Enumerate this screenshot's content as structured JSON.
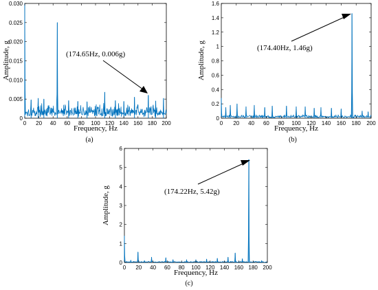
{
  "accent_color": "#0072BD",
  "chart_data": [
    {
      "type": "line",
      "panel_label": "(a)",
      "xlabel": "Frequency, Hz",
      "ylabel": "Amplitude, g",
      "xlim": [
        0,
        200
      ],
      "ylim": [
        0,
        0.03
      ],
      "xticks": [
        "0",
        "20",
        "40",
        "60",
        "80",
        "100",
        "120",
        "140",
        "160",
        "180",
        "200"
      ],
      "yticks": [
        "0",
        "0.005",
        "0.010",
        "0.015",
        "0.020",
        "0.025",
        "0.030"
      ],
      "annotation": "(174.65Hz, 0.006g)",
      "annotated_point": {
        "x": 174.65,
        "y": 0.006
      },
      "series": [
        {
          "noise_floor": 0.0022,
          "peaks": [
            {
              "x": 0,
              "y": 0.03
            },
            {
              "x": 46,
              "y": 0.025
            },
            {
              "x": 113,
              "y": 0.0068
            },
            {
              "x": 174.65,
              "y": 0.006
            },
            {
              "x": 155,
              "y": 0.0055
            },
            {
              "x": 19,
              "y": 0.0052
            },
            {
              "x": 27,
              "y": 0.005
            },
            {
              "x": 196,
              "y": 0.0052
            },
            {
              "x": 9,
              "y": 0.0048
            },
            {
              "x": 62,
              "y": 0.0046
            },
            {
              "x": 128,
              "y": 0.0046
            },
            {
              "x": 75,
              "y": 0.0044
            },
            {
              "x": 88,
              "y": 0.0043
            },
            {
              "x": 140,
              "y": 0.0044
            },
            {
              "x": 185,
              "y": 0.0045
            }
          ]
        }
      ]
    },
    {
      "type": "line",
      "panel_label": "(b)",
      "xlabel": "Frequency, Hz",
      "ylabel": "Amplitude, g",
      "xlim": [
        0,
        200
      ],
      "ylim": [
        0,
        1.6
      ],
      "xticks": [
        "0",
        "20",
        "40",
        "60",
        "80",
        "100",
        "120",
        "140",
        "160",
        "180",
        "200"
      ],
      "yticks": [
        "0",
        "0.2",
        "0.4",
        "0.6",
        "0.8",
        "1",
        "1.2",
        "1.4",
        "1.6"
      ],
      "annotation": "(174.40Hz, 1.46g)",
      "annotated_point": {
        "x": 174.4,
        "y": 1.46
      },
      "series": [
        {
          "noise_floor": 0.03,
          "peaks": [
            {
              "x": 174.4,
              "y": 1.46
            },
            {
              "x": 0,
              "y": 0.28
            },
            {
              "x": 6,
              "y": 0.15
            },
            {
              "x": 12,
              "y": 0.18
            },
            {
              "x": 21,
              "y": 0.2
            },
            {
              "x": 33,
              "y": 0.16
            },
            {
              "x": 44,
              "y": 0.18
            },
            {
              "x": 58,
              "y": 0.15
            },
            {
              "x": 68,
              "y": 0.17
            },
            {
              "x": 87,
              "y": 0.17
            },
            {
              "x": 100,
              "y": 0.16
            },
            {
              "x": 112,
              "y": 0.16
            },
            {
              "x": 124,
              "y": 0.14
            },
            {
              "x": 133,
              "y": 0.15
            },
            {
              "x": 147,
              "y": 0.14
            },
            {
              "x": 160,
              "y": 0.13
            },
            {
              "x": 188,
              "y": 0.1
            },
            {
              "x": 196,
              "y": 0.09
            }
          ]
        }
      ]
    },
    {
      "type": "line",
      "panel_label": "(c)",
      "xlabel": "Frequency, Hz",
      "ylabel": "Amplitude, g",
      "xlim": [
        0,
        200
      ],
      "ylim": [
        0,
        6
      ],
      "xticks": [
        "0",
        "20",
        "40",
        "60",
        "80",
        "100",
        "120",
        "140",
        "160",
        "180",
        "200"
      ],
      "yticks": [
        "0",
        "1",
        "2",
        "3",
        "4",
        "5",
        "6"
      ],
      "annotation": "(174.22Hz, 5.42g)",
      "annotated_point": {
        "x": 174.22,
        "y": 5.42
      },
      "series": [
        {
          "noise_floor": 0.04,
          "peaks": [
            {
              "x": 174.22,
              "y": 5.42
            },
            {
              "x": 0,
              "y": 1.4
            },
            {
              "x": 9,
              "y": 0.12
            },
            {
              "x": 19,
              "y": 0.55
            },
            {
              "x": 28,
              "y": 0.1
            },
            {
              "x": 38,
              "y": 0.28
            },
            {
              "x": 58,
              "y": 0.25
            },
            {
              "x": 68,
              "y": 0.15
            },
            {
              "x": 87,
              "y": 0.15
            },
            {
              "x": 100,
              "y": 0.15
            },
            {
              "x": 115,
              "y": 0.18
            },
            {
              "x": 130,
              "y": 0.22
            },
            {
              "x": 145,
              "y": 0.28
            },
            {
              "x": 155,
              "y": 0.5
            },
            {
              "x": 165,
              "y": 0.2
            },
            {
              "x": 192,
              "y": 0.1
            }
          ]
        }
      ]
    }
  ]
}
